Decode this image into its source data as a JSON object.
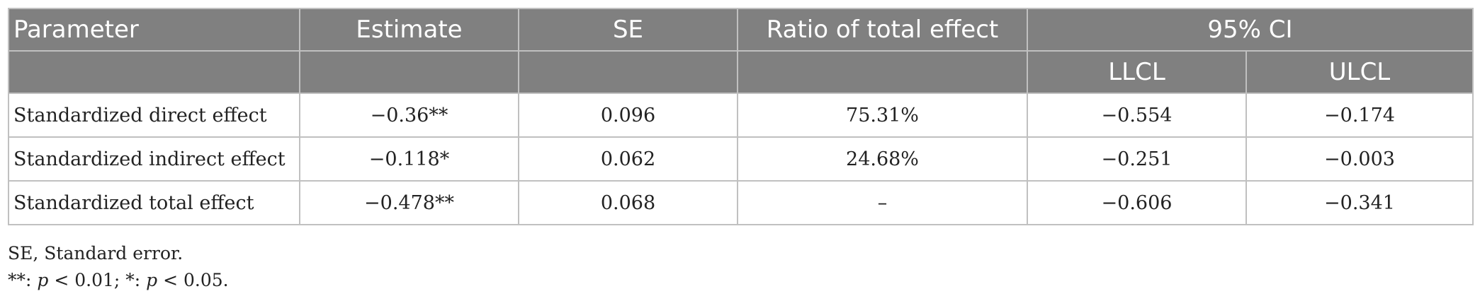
{
  "table": {
    "headers": {
      "parameter": "Parameter",
      "estimate": "Estimate",
      "se": "SE",
      "ratio": "Ratio of total effect",
      "ci": "95% CI",
      "llcl": "LLCL",
      "ulcl": "ULCL"
    },
    "rows": [
      {
        "parameter": "Standardized direct effect",
        "estimate": "−0.36**",
        "se": "0.096",
        "ratio": "75.31%",
        "llcl": "−0.554",
        "ulcl": "−0.174"
      },
      {
        "parameter": "Standardized indirect effect",
        "estimate": "−0.118*",
        "se": "0.062",
        "ratio": "24.68%",
        "llcl": "−0.251",
        "ulcl": "−0.003"
      },
      {
        "parameter": "Standardized total effect",
        "estimate": "−0.478**",
        "se": "0.068",
        "ratio": "–",
        "llcl": "−0.606",
        "ulcl": "−0.341"
      }
    ]
  },
  "notes": {
    "abbrev": "SE, Standard error.",
    "sig_prefix": "**: ",
    "p1": "p",
    "sig_mid1": " < 0.01; *: ",
    "p2": "p",
    "sig_mid2": " < 0.05."
  },
  "colors": {
    "header_bg": "#808080",
    "header_text": "#ffffff",
    "border": "#c0c0c0"
  }
}
